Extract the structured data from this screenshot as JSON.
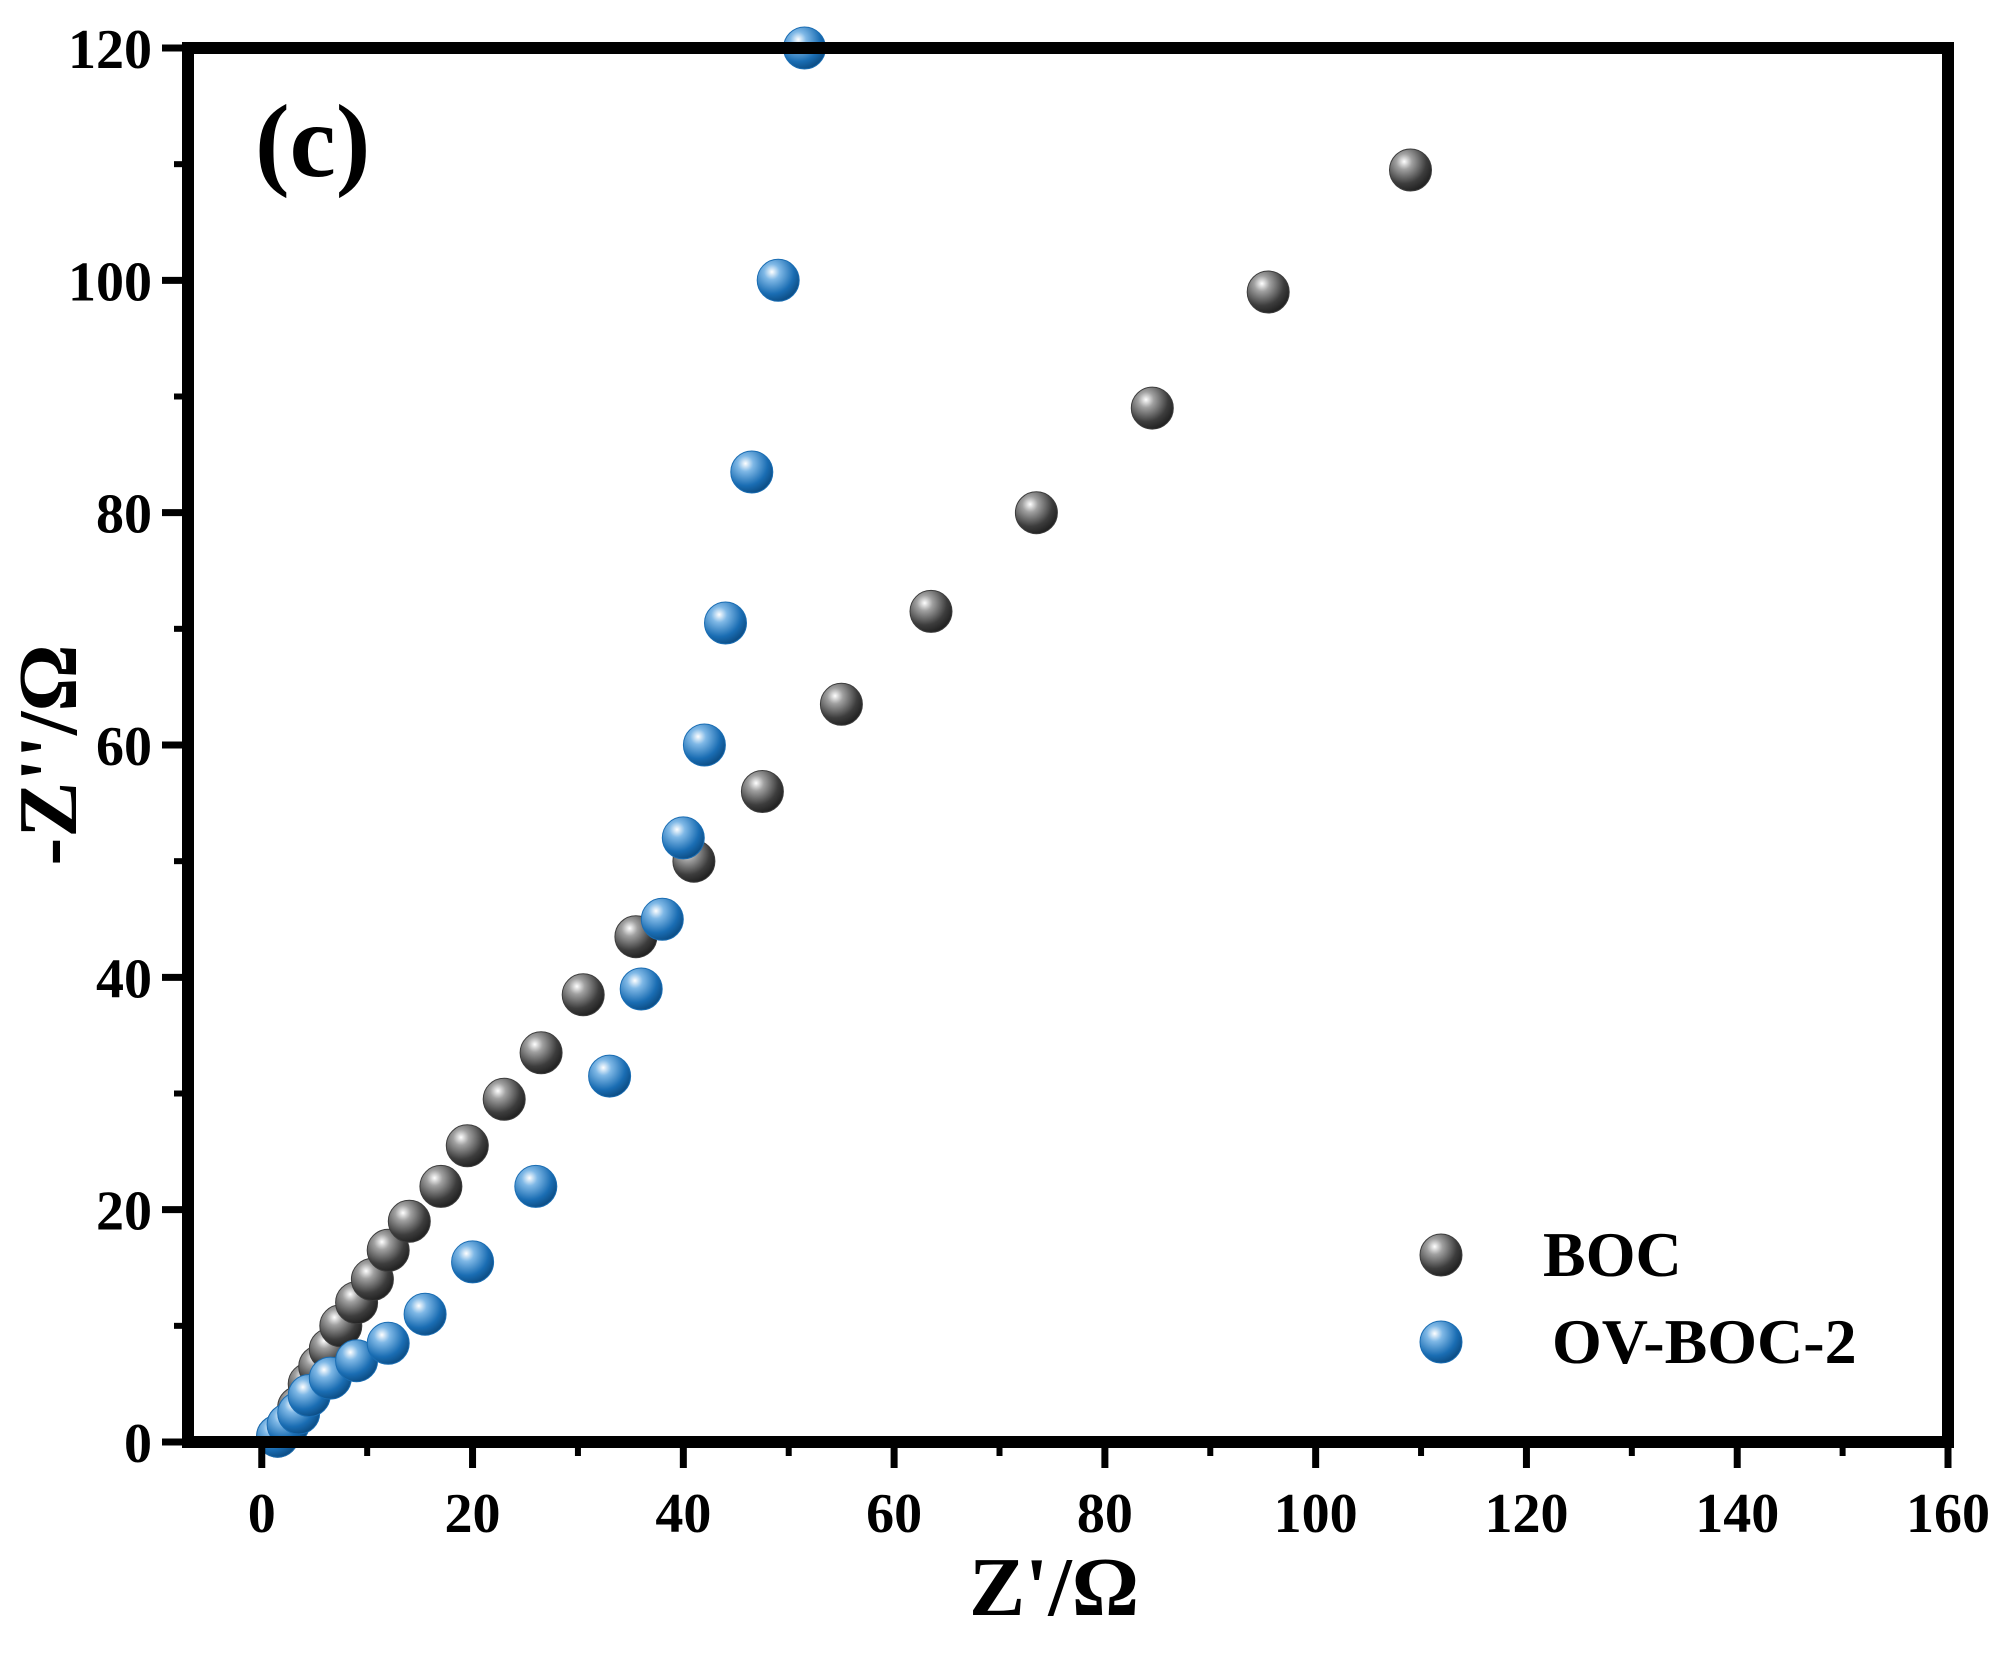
{
  "chart_data": {
    "type": "scatter",
    "panel_label": "(c)",
    "xlabel": "Z'/Ω",
    "ylabel": "-Z''/Ω",
    "xlim": [
      -7,
      160
    ],
    "ylim": [
      0,
      120
    ],
    "x_ticks": [
      0,
      20,
      40,
      60,
      80,
      100,
      120,
      140,
      160
    ],
    "y_ticks": [
      0,
      20,
      40,
      60,
      80,
      100,
      120
    ],
    "grid": false,
    "legend_position": "bottom-right",
    "series": [
      {
        "name": "BOC",
        "color": "#3d3d3d",
        "points": [
          [
            1.5,
            0.5
          ],
          [
            2.5,
            1.5
          ],
          [
            3.5,
            3
          ],
          [
            4.5,
            5
          ],
          [
            5.5,
            6.5
          ],
          [
            6.5,
            8
          ],
          [
            7.5,
            10
          ],
          [
            9,
            12
          ],
          [
            10.5,
            14
          ],
          [
            12,
            16.5
          ],
          [
            14,
            19
          ],
          [
            17,
            22
          ],
          [
            19.5,
            25.5
          ],
          [
            23,
            29.5
          ],
          [
            26.5,
            33.5
          ],
          [
            30.5,
            38.5
          ],
          [
            35.5,
            43.5
          ],
          [
            41,
            50
          ],
          [
            47.5,
            56
          ],
          [
            55,
            63.5
          ],
          [
            63.5,
            71.5
          ],
          [
            73.5,
            80
          ],
          [
            84.5,
            89
          ],
          [
            95.5,
            99
          ],
          [
            109,
            109.5
          ]
        ]
      },
      {
        "name": "OV-BOC-2",
        "color": "#1a6db3",
        "points": [
          [
            1.5,
            0.5
          ],
          [
            2.5,
            1.5
          ],
          [
            3.5,
            2.5
          ],
          [
            4.5,
            4
          ],
          [
            6.5,
            5.5
          ],
          [
            9,
            7
          ],
          [
            12,
            8.5
          ],
          [
            15.5,
            11
          ],
          [
            20,
            15.5
          ],
          [
            26,
            22
          ],
          [
            33,
            31.5
          ],
          [
            36,
            39
          ],
          [
            38,
            45
          ],
          [
            40,
            52
          ],
          [
            42,
            60
          ],
          [
            44,
            70.5
          ],
          [
            46.5,
            83.5
          ],
          [
            49,
            100
          ],
          [
            51.5,
            120
          ]
        ]
      }
    ]
  }
}
